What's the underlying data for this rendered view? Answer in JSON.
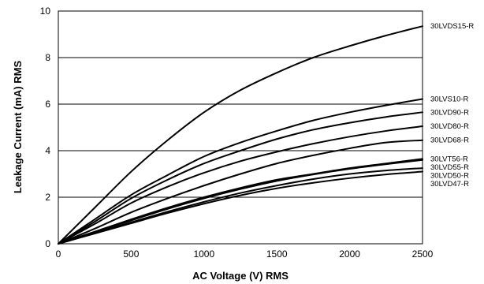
{
  "chart_data": {
    "type": "line",
    "xlabel": "AC Voltage (V) RMS",
    "ylabel": "Leakage Current (mA) RMS",
    "xlim": [
      0,
      2500
    ],
    "ylim": [
      0,
      10
    ],
    "x_ticks": [
      "0",
      "500",
      "1000",
      "1500",
      "2000",
      "2500"
    ],
    "y_ticks": [
      "0",
      "2",
      "4",
      "6",
      "8",
      "10"
    ],
    "grid": "horizontal",
    "legend": "right-end labels",
    "series": [
      {
        "name": "30LVDS15-R",
        "x": [
          0,
          250,
          500,
          750,
          1000,
          1250,
          1500,
          1750,
          2000,
          2250,
          2500
        ],
        "y": [
          0,
          1.55,
          3.1,
          4.45,
          5.65,
          6.6,
          7.35,
          8.0,
          8.5,
          8.95,
          9.35
        ]
      },
      {
        "name": "30LVS10-R",
        "x": [
          0,
          250,
          500,
          750,
          1000,
          1250,
          1500,
          1750,
          2000,
          2250,
          2500
        ],
        "y": [
          0,
          1.05,
          2.1,
          2.95,
          3.75,
          4.35,
          4.85,
          5.3,
          5.65,
          5.95,
          6.22
        ]
      },
      {
        "name": "30LVD90-R",
        "x": [
          0,
          250,
          500,
          750,
          1000,
          1250,
          1500,
          1750,
          2000,
          2250,
          2500
        ],
        "y": [
          0,
          0.95,
          1.95,
          2.75,
          3.45,
          4.0,
          4.5,
          4.9,
          5.2,
          5.45,
          5.65
        ]
      },
      {
        "name": "30LVD80-R",
        "x": [
          0,
          250,
          500,
          750,
          1000,
          1250,
          1500,
          1750,
          2000,
          2250,
          2500
        ],
        "y": [
          0,
          0.85,
          1.75,
          2.45,
          3.05,
          3.55,
          3.95,
          4.3,
          4.6,
          4.85,
          5.05
        ]
      },
      {
        "name": "30LVD68-R",
        "x": [
          0,
          250,
          500,
          750,
          1000,
          1250,
          1500,
          1750,
          2000,
          2250,
          2500
        ],
        "y": [
          0,
          0.65,
          1.35,
          1.95,
          2.5,
          3.0,
          3.45,
          3.8,
          4.1,
          4.35,
          4.45
        ]
      },
      {
        "name": "30LVT56-R",
        "x": [
          0,
          250,
          500,
          750,
          1000,
          1250,
          1500,
          1750,
          2000,
          2250,
          2500
        ],
        "y": [
          0,
          0.52,
          1.05,
          1.55,
          2.0,
          2.4,
          2.75,
          3.0,
          3.25,
          3.45,
          3.65
        ]
      },
      {
        "name": "30LVD55-R",
        "x": [
          0,
          250,
          500,
          750,
          1000,
          1250,
          1500,
          1750,
          2000,
          2250,
          2500
        ],
        "y": [
          0,
          0.5,
          1.0,
          1.5,
          1.95,
          2.35,
          2.7,
          2.98,
          3.22,
          3.42,
          3.6
        ]
      },
      {
        "name": "30LVD50-R",
        "x": [
          0,
          250,
          500,
          750,
          1000,
          1250,
          1500,
          1750,
          2000,
          2250,
          2500
        ],
        "y": [
          0,
          0.46,
          0.92,
          1.38,
          1.8,
          2.18,
          2.5,
          2.78,
          3.0,
          3.15,
          3.25
        ]
      },
      {
        "name": "30LVD47-R",
        "x": [
          0,
          250,
          500,
          750,
          1000,
          1250,
          1500,
          1750,
          2000,
          2250,
          2500
        ],
        "y": [
          0,
          0.44,
          0.88,
          1.32,
          1.72,
          2.08,
          2.38,
          2.62,
          2.82,
          2.98,
          3.1
        ]
      }
    ]
  }
}
